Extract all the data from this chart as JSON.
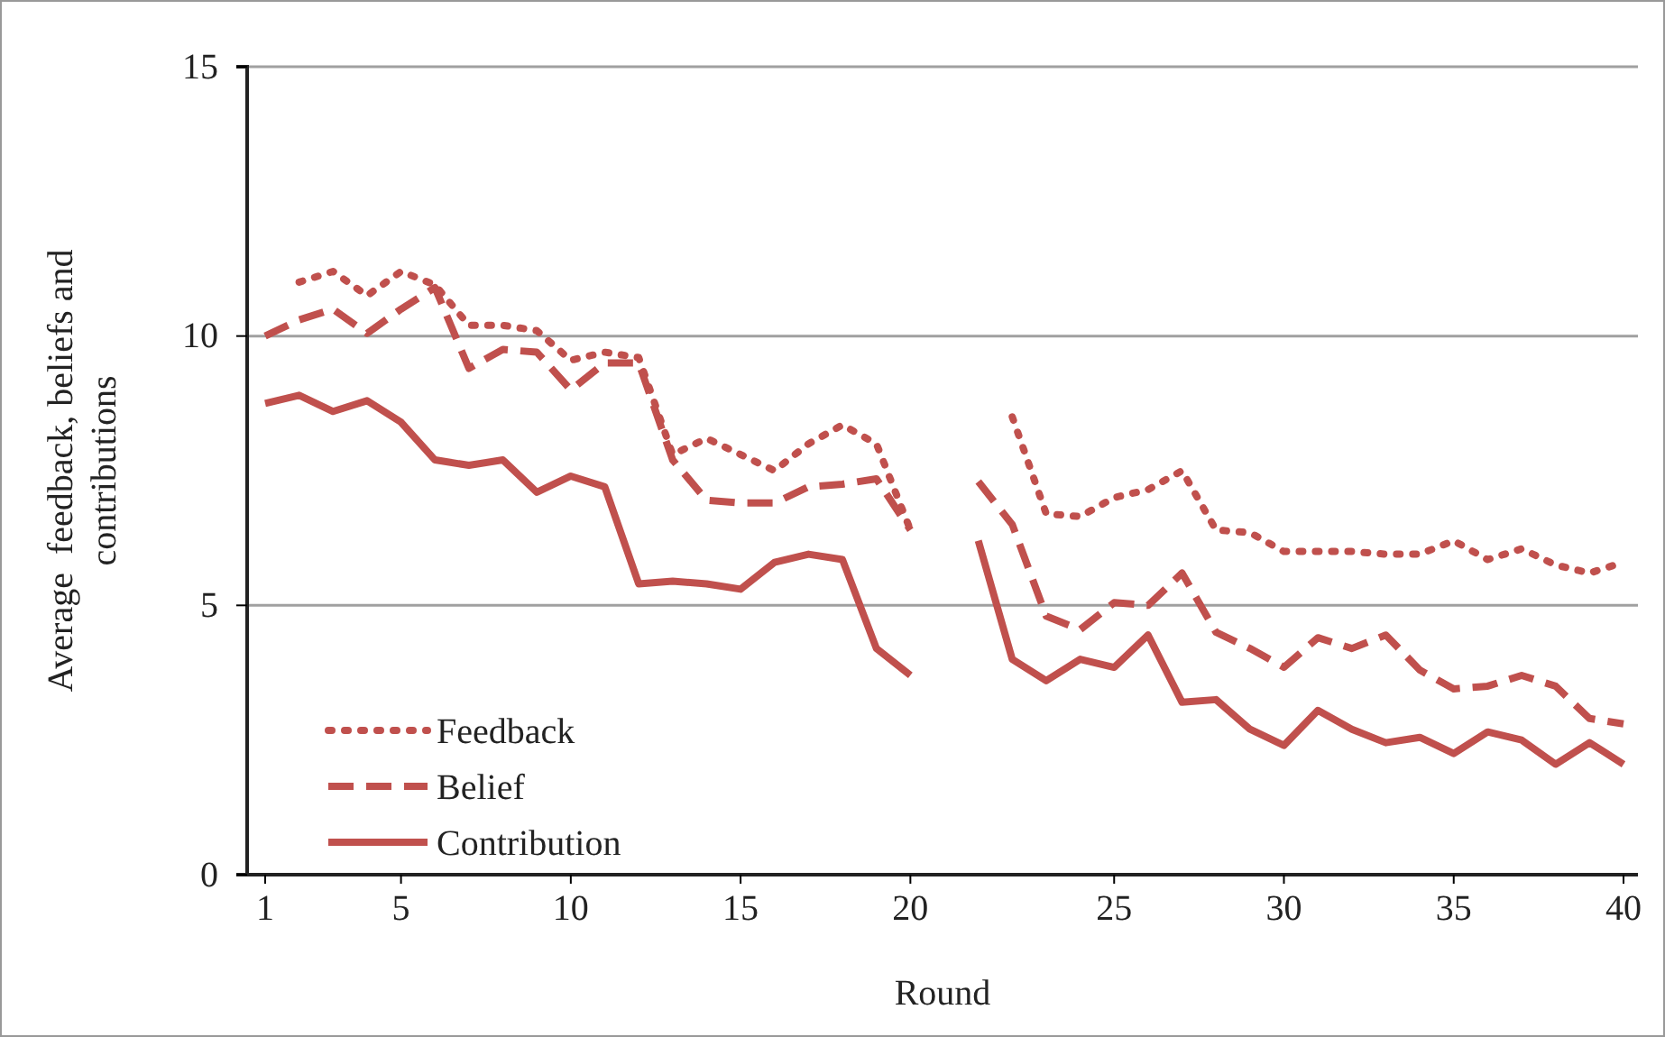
{
  "chart_data": {
    "type": "line",
    "xlabel": "Round",
    "ylabel": "Average  feedback, beliefs and contributions",
    "categories": [
      "1",
      null,
      null,
      null,
      "5",
      null,
      null,
      null,
      null,
      "10",
      null,
      null,
      null,
      null,
      "15",
      null,
      null,
      null,
      null,
      "20",
      null,
      null,
      null,
      null,
      null,
      "25",
      null,
      null,
      null,
      null,
      "30",
      null,
      null,
      null,
      null,
      "35",
      null,
      null,
      null,
      null,
      "40"
    ],
    "ylim": [
      0,
      15
    ],
    "yticks": [
      0,
      5,
      10,
      15
    ],
    "grid": "y",
    "legend": "bottom left",
    "marker": "none",
    "series": [
      {
        "name": "Feedback",
        "color": "#c0504d",
        "line_style": "dotted",
        "values": [
          null,
          11.0,
          11.2,
          10.75,
          11.2,
          10.95,
          10.2,
          10.2,
          10.1,
          9.55,
          9.7,
          9.6,
          7.8,
          8.1,
          7.8,
          7.5,
          8.0,
          8.35,
          8.0,
          6.4,
          null,
          null,
          8.5,
          6.7,
          6.65,
          7.0,
          7.15,
          7.5,
          6.4,
          6.35,
          6.0,
          6.0,
          6.0,
          5.95,
          5.95,
          6.2,
          5.85,
          6.05,
          5.75,
          5.6,
          5.8
        ]
      },
      {
        "name": "Belief",
        "color": "#c0504d",
        "line_style": "dashed",
        "values": [
          10.0,
          10.3,
          10.5,
          10.05,
          10.5,
          10.9,
          9.4,
          9.75,
          9.7,
          9.0,
          9.5,
          9.5,
          7.7,
          6.95,
          6.9,
          6.9,
          7.2,
          7.25,
          7.35,
          6.4,
          null,
          7.3,
          6.5,
          4.8,
          4.55,
          5.05,
          5.0,
          5.6,
          4.5,
          4.2,
          3.85,
          4.4,
          4.2,
          4.45,
          3.8,
          3.45,
          3.5,
          3.7,
          3.5,
          2.9,
          2.8
        ]
      },
      {
        "name": "Contribution",
        "color": "#c0504d",
        "line_style": "solid",
        "values": [
          8.75,
          8.9,
          8.6,
          8.8,
          8.4,
          7.7,
          7.6,
          7.7,
          7.1,
          7.4,
          7.2,
          5.4,
          5.45,
          5.4,
          5.3,
          5.8,
          5.95,
          5.85,
          4.2,
          3.7,
          null,
          6.2,
          4.0,
          3.6,
          4.0,
          3.85,
          4.45,
          3.2,
          3.25,
          2.7,
          2.4,
          3.05,
          2.7,
          2.45,
          2.55,
          2.25,
          2.65,
          2.5,
          2.05,
          2.45,
          2.05
        ]
      }
    ]
  }
}
